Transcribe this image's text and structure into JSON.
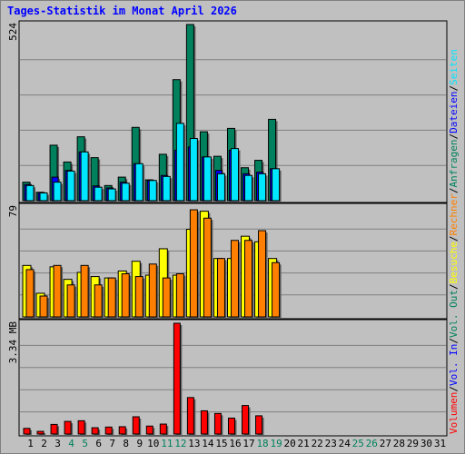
{
  "colors": {
    "background": "#C0C0C0",
    "frame": "#FFFFFF",
    "title": "#0000FF",
    "grid": "#808080",
    "requests": "#00805C",
    "files": "#0000FF",
    "pages": "#00E6FF",
    "visits": "#FFFF00",
    "hosts": "#FF8000",
    "volume": "#FF0000",
    "label_default": "#000000",
    "label_weekend": "#00805C"
  },
  "chart_data": [
    {
      "type": "bar",
      "title": "Tages-Statistik im Monat April 2026",
      "ymax_label": "524",
      "ylim": [
        0,
        524
      ],
      "legend": [
        {
          "text": "Anfragen",
          "color": "#00805C"
        },
        {
          "text": "Dateien",
          "color": "#0000FF"
        },
        {
          "text": "Seiten",
          "color": "#00E6FF"
        }
      ],
      "categories": [
        "1",
        "2",
        "3",
        "4",
        "5",
        "6",
        "7",
        "8",
        "9",
        "10",
        "11",
        "12",
        "13",
        "14",
        "15",
        "16",
        "17",
        "18",
        "19",
        "20",
        "21",
        "22",
        "23",
        "24",
        "25",
        "26",
        "27",
        "28",
        "29",
        "30",
        "31"
      ],
      "weekend_days": [
        "4",
        "5",
        "11",
        "12",
        "18",
        "19",
        "25",
        "26"
      ],
      "series": [
        {
          "name": "Anfragen",
          "values": [
            55,
            25,
            165,
            115,
            190,
            128,
            45,
            70,
            218,
            62,
            138,
            360,
            524,
            205,
            132,
            215,
            98,
            120,
            242,
            0,
            0,
            0,
            0,
            0,
            0,
            0,
            0,
            0,
            0,
            0,
            0
          ]
        },
        {
          "name": "Dateien",
          "values": [
            48,
            24,
            70,
            90,
            145,
            44,
            38,
            55,
            110,
            60,
            75,
            150,
            160,
            130,
            90,
            150,
            80,
            85,
            95,
            0,
            0,
            0,
            0,
            0,
            0,
            0,
            0,
            0,
            0,
            0,
            0
          ]
        },
        {
          "name": "Seiten",
          "values": [
            45,
            23,
            55,
            88,
            145,
            40,
            35,
            52,
            110,
            60,
            72,
            230,
            185,
            130,
            80,
            155,
            75,
            80,
            95,
            0,
            0,
            0,
            0,
            0,
            0,
            0,
            0,
            0,
            0,
            0,
            0
          ]
        }
      ]
    },
    {
      "type": "bar",
      "ymax_label": "79",
      "ylim": [
        0,
        79
      ],
      "legend": [
        {
          "text": "Besuche",
          "color": "#FFFF00"
        },
        {
          "text": "Rechner",
          "color": "#FF8000"
        }
      ],
      "series": [
        {
          "name": "Besuche",
          "values": [
            37,
            17,
            36,
            27,
            32,
            29,
            28,
            33,
            40,
            30,
            49,
            30,
            63,
            76,
            42,
            42,
            58,
            54,
            42,
            0,
            0,
            0,
            0,
            0,
            0,
            0,
            0,
            0,
            0,
            0,
            0
          ]
        },
        {
          "name": "Rechner",
          "values": [
            34,
            15,
            37,
            23,
            37,
            23,
            28,
            31,
            29,
            38,
            28,
            31,
            77,
            71,
            42,
            55,
            55,
            62,
            39,
            0,
            0,
            0,
            0,
            0,
            0,
            0,
            0,
            0,
            0,
            0,
            0
          ]
        }
      ]
    },
    {
      "type": "bar",
      "ymax_label": "3.34 MB",
      "ylim": [
        0,
        3.34
      ],
      "legend": [
        {
          "text": "Volumen",
          "color": "#FF0000"
        },
        {
          "text": "Vol. In",
          "color": "#0000FF"
        },
        {
          "text": "Vol. Out",
          "color": "#00805C"
        }
      ],
      "series": [
        {
          "name": "Volumen",
          "values": [
            0.17,
            0.08,
            0.29,
            0.38,
            0.4,
            0.19,
            0.21,
            0.22,
            0.52,
            0.24,
            0.3,
            3.34,
            1.1,
            0.7,
            0.62,
            0.48,
            0.86,
            0.55,
            0,
            0,
            0,
            0,
            0,
            0,
            0,
            0,
            0,
            0,
            0,
            0,
            0
          ]
        },
        {
          "name": "Vol. In",
          "values": []
        },
        {
          "name": "Vol. Out",
          "values": []
        }
      ]
    }
  ]
}
